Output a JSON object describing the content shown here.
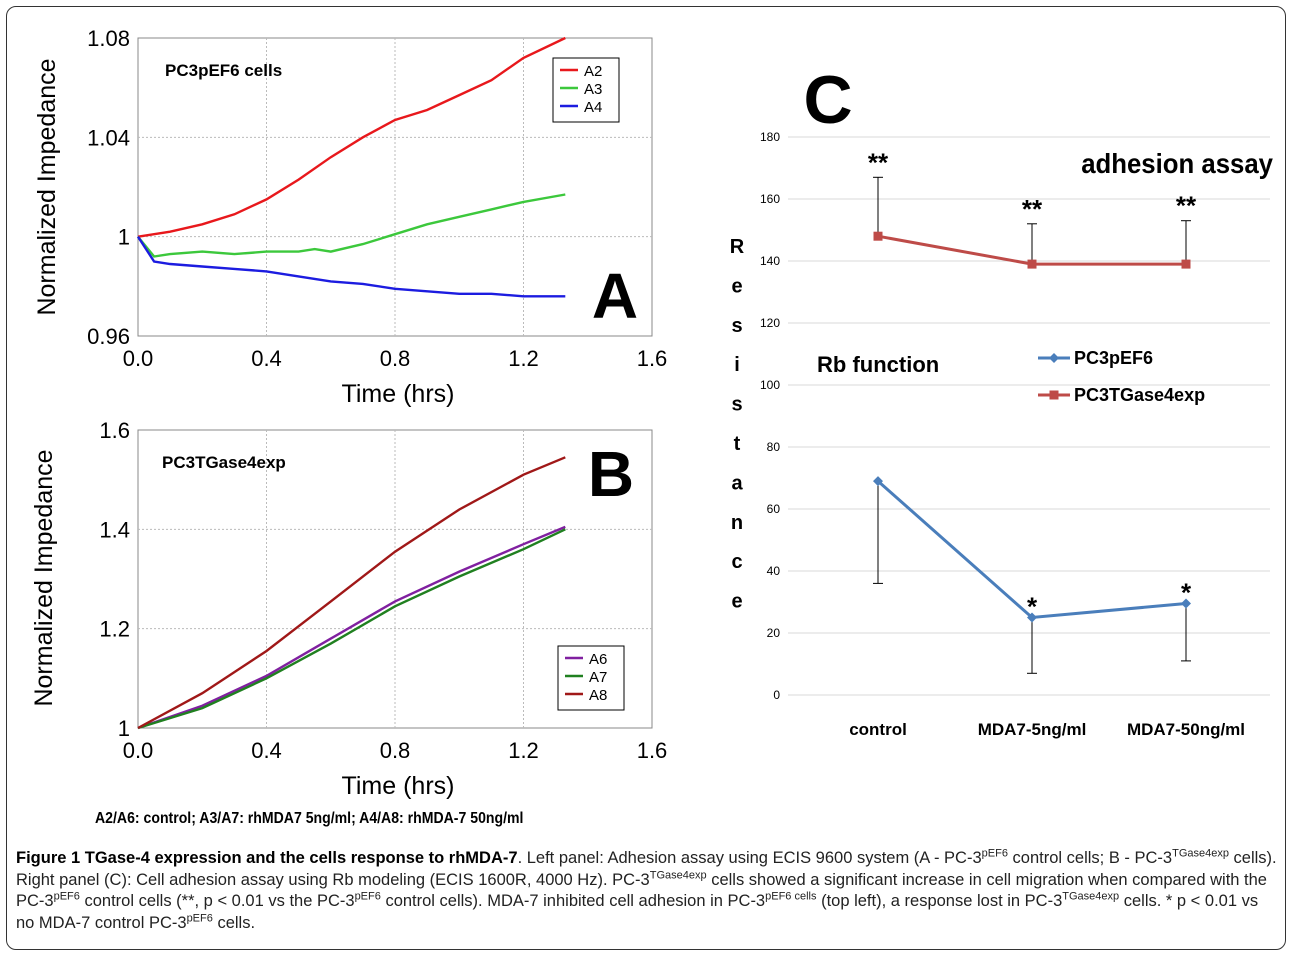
{
  "panelA": {
    "letter": "A",
    "label": "PC3pEF6 cells",
    "xlabel": "Time (hrs)",
    "ylabel": "Normalized Impedance",
    "chart_data": {
      "type": "line",
      "xlim": [
        0.0,
        1.6
      ],
      "ylim": [
        0.96,
        1.08
      ],
      "xticks": [
        "0.0",
        "0.4",
        "0.8",
        "1.2",
        "1.6"
      ],
      "yticks": [
        "0.96",
        "1",
        "1.04",
        "1.08"
      ],
      "ytick_values": [
        0.96,
        1.0,
        1.04,
        1.08
      ],
      "grid": true,
      "legend": "top-right",
      "series": [
        {
          "name": "A2",
          "color": "#e8181c",
          "x": [
            0,
            0.1,
            0.2,
            0.3,
            0.4,
            0.5,
            0.6,
            0.7,
            0.8,
            0.9,
            1.0,
            1.1,
            1.2,
            1.33
          ],
          "y": [
            1.0,
            1.002,
            1.005,
            1.009,
            1.015,
            1.023,
            1.032,
            1.04,
            1.047,
            1.051,
            1.057,
            1.063,
            1.072,
            1.08
          ]
        },
        {
          "name": "A3",
          "color": "#3cc83c",
          "x": [
            0,
            0.05,
            0.1,
            0.2,
            0.3,
            0.4,
            0.5,
            0.55,
            0.6,
            0.7,
            0.8,
            0.9,
            1.0,
            1.1,
            1.2,
            1.33
          ],
          "y": [
            1.0,
            0.992,
            0.993,
            0.994,
            0.993,
            0.994,
            0.994,
            0.995,
            0.994,
            0.997,
            1.001,
            1.005,
            1.008,
            1.011,
            1.014,
            1.017
          ]
        },
        {
          "name": "A4",
          "color": "#1c1ce0",
          "x": [
            0,
            0.05,
            0.1,
            0.2,
            0.3,
            0.4,
            0.5,
            0.6,
            0.7,
            0.8,
            0.9,
            1.0,
            1.1,
            1.2,
            1.33
          ],
          "y": [
            1.0,
            0.99,
            0.989,
            0.988,
            0.987,
            0.986,
            0.984,
            0.982,
            0.981,
            0.979,
            0.978,
            0.977,
            0.977,
            0.976,
            0.976
          ]
        }
      ]
    }
  },
  "panelB": {
    "letter": "B",
    "label": "PC3TGase4exp",
    "xlabel": "Time (hrs)",
    "ylabel": "Normalized Impedance",
    "chart_data": {
      "type": "line",
      "xlim": [
        0.0,
        1.6
      ],
      "ylim": [
        1.0,
        1.6
      ],
      "xticks": [
        "0.0",
        "0.4",
        "0.8",
        "1.2",
        "1.6"
      ],
      "yticks": [
        "1",
        "1.2",
        "1.4",
        "1.6"
      ],
      "ytick_values": [
        1.0,
        1.2,
        1.4,
        1.6
      ],
      "grid": true,
      "legend": "bottom-right",
      "series": [
        {
          "name": "A6",
          "color": "#8020a0",
          "x": [
            0,
            0.2,
            0.4,
            0.6,
            0.8,
            1.0,
            1.2,
            1.33
          ],
          "y": [
            1.0,
            1.045,
            1.105,
            1.18,
            1.255,
            1.315,
            1.37,
            1.405
          ]
        },
        {
          "name": "A7",
          "color": "#208020",
          "x": [
            0,
            0.2,
            0.4,
            0.6,
            0.8,
            1.0,
            1.2,
            1.33
          ],
          "y": [
            1.0,
            1.04,
            1.1,
            1.17,
            1.245,
            1.305,
            1.36,
            1.4
          ]
        },
        {
          "name": "A8",
          "color": "#a01818",
          "x": [
            0,
            0.2,
            0.4,
            0.6,
            0.8,
            1.0,
            1.2,
            1.33
          ],
          "y": [
            1.0,
            1.07,
            1.155,
            1.255,
            1.355,
            1.44,
            1.51,
            1.545
          ]
        }
      ]
    }
  },
  "panelC": {
    "letter": "C",
    "title": "adhesion assay",
    "subtitle": "Rb function",
    "ylabel_letters": [
      "R",
      "e",
      "s",
      "i",
      "s",
      "t",
      "a",
      "n",
      "c",
      "e"
    ],
    "chart_data": {
      "type": "line",
      "categories": [
        "control",
        "MDA7-5ng/ml",
        "MDA7-50ng/ml"
      ],
      "ylim": [
        0,
        180
      ],
      "yticks": [
        0,
        20,
        40,
        60,
        80,
        100,
        120,
        140,
        160,
        180
      ],
      "grid": true,
      "legend": "center-right",
      "series": [
        {
          "name": "PC3pEF6",
          "color": "#4a7ebb",
          "marker": "diamond",
          "values": [
            69,
            25,
            29.5
          ],
          "error_low": [
            36,
            7,
            11
          ],
          "error_high": [
            69,
            25,
            29.5
          ],
          "annotations": [
            "",
            "*",
            "*"
          ]
        },
        {
          "name": "PC3TGase4exp",
          "color": "#be4b48",
          "marker": "square",
          "values": [
            148,
            139,
            139
          ],
          "error_low": [
            148,
            139,
            139
          ],
          "error_high": [
            167,
            152,
            153
          ],
          "annotations": [
            "**",
            "**",
            "**"
          ]
        }
      ]
    }
  },
  "legend_line": "A2/A6: control;  A3/A7: rhMDA7 5ng/ml;  A4/A8: rhMDA-7 50ng/ml",
  "caption": {
    "title": "Figure 1 TGase-4 expression and the cells response to rhMDA-7",
    "p1": ". Left panel: Adhesion assay using ECIS 9600 system (A - PC-3",
    "sup1": "pEF6",
    "p2": " control cells; B - PC-3",
    "sup2": "TGase4exp",
    "p3": " cells). Right panel (C): Cell adhesion assay using Rb modeling (ECIS 1600R, 4000 Hz). PC-3",
    "sup3": "TGase4exp",
    "p4": " cells showed a significant increase in cell migration when compared with the PC-3",
    "sup4": "pEF6",
    "p5": " control cells (**, p < 0.01 vs the PC-3",
    "sup5": "pEF6",
    "p6": " control cells). MDA-7 inhibited cell adhesion in PC-3",
    "sup6": "pEF6 cells",
    "p7": " (top left), a response lost in PC-3",
    "sup7": "TGase4exp",
    "p8": " cells. * p < 0.01 vs no MDA-7 control PC-3",
    "sup8": "pEF6",
    "p9": " cells."
  }
}
